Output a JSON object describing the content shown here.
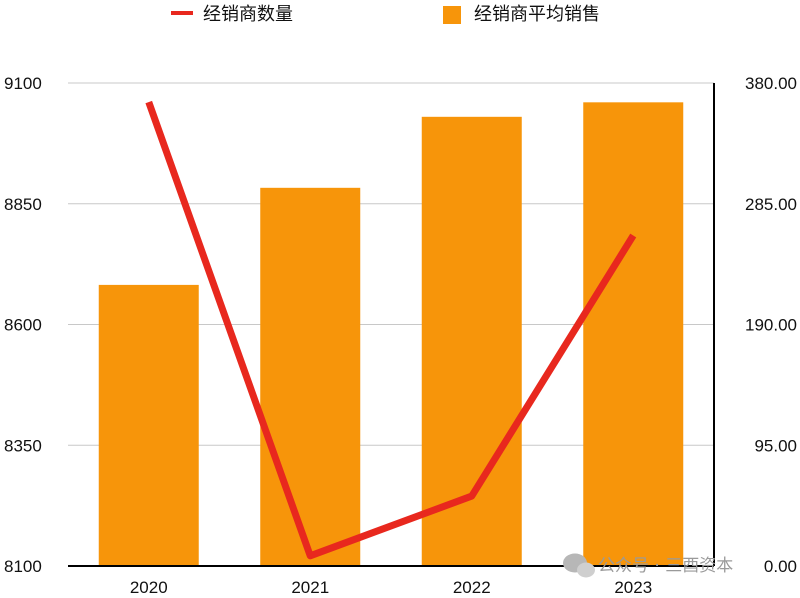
{
  "chart_data": {
    "type": "bar",
    "categories": [
      "2020",
      "2021",
      "2022",
      "2023"
    ],
    "series": [
      {
        "name": "经销商平均销售",
        "type": "bar",
        "axis": "left",
        "values": [
          8682,
          8883,
          9030,
          9060
        ],
        "color": "#f7950a"
      },
      {
        "name": "经销商数量",
        "type": "line",
        "axis": "right",
        "values": [
          365,
          8,
          55,
          260
        ],
        "color": "#e8281e"
      }
    ],
    "left_axis": {
      "ylim": [
        8100,
        9100
      ],
      "ticks": [
        "8100",
        "8350",
        "8600",
        "8850",
        "9100"
      ]
    },
    "right_axis": {
      "ylim": [
        0,
        380
      ],
      "ticks": [
        "0.00",
        "95.00",
        "190.00",
        "285.00",
        "380.00"
      ]
    },
    "grid": true,
    "legend": "top"
  },
  "watermark": "公众号 · 三酉资本"
}
